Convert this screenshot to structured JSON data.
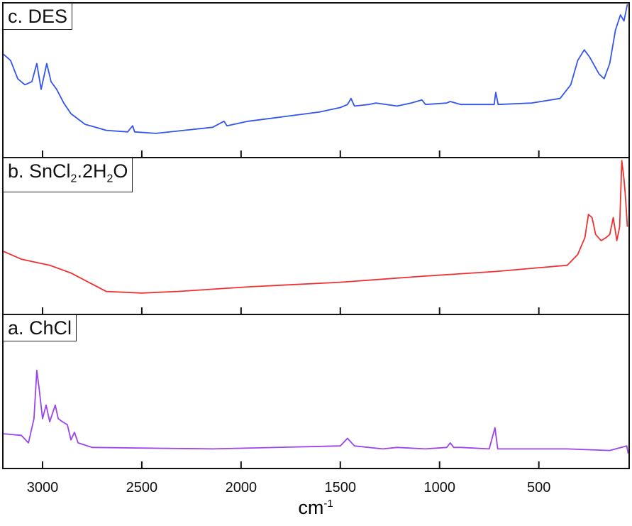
{
  "chart_data": {
    "type": "line",
    "xlabel": "cm",
    "xlabel_superscript": "-1",
    "xlim": [
      3200,
      45
    ],
    "x_ticks": [
      3000,
      2500,
      2000,
      1500,
      1000,
      500
    ],
    "ylim": [
      0,
      100
    ],
    "y_units": "relative intensity (stacked panels, no y axis shown)",
    "panels": [
      {
        "label_prefix": "c. ",
        "label": "DES",
        "color": "#3355ee",
        "x": [
          3196,
          3161,
          3125,
          3089,
          3054,
          3029,
          3007,
          2979,
          2957,
          2929,
          2893,
          2857,
          2786,
          2679,
          2571,
          2546,
          2536,
          2429,
          2286,
          2143,
          2086,
          2071,
          1964,
          1786,
          1607,
          1500,
          1464,
          1446,
          1429,
          1357,
          1321,
          1214,
          1143,
          1089,
          1071,
          964,
          946,
          893,
          725,
          717,
          705,
          536,
          393,
          339,
          304,
          271,
          243,
          196,
          171,
          143,
          114,
          89,
          71,
          54
        ],
        "y": [
          67,
          63,
          51,
          47,
          49,
          61,
          44,
          61,
          49,
          44,
          35,
          28,
          21,
          17,
          16,
          20,
          16,
          15,
          17,
          19,
          23,
          20,
          23,
          26,
          29,
          32,
          34,
          38,
          33,
          34,
          35,
          33,
          35,
          37,
          34,
          35,
          36,
          34,
          34,
          42,
          34,
          35,
          38,
          47,
          63,
          70,
          65,
          54,
          51,
          61,
          83,
          93,
          89,
          100
        ]
      },
      {
        "label_prefix": "b. ",
        "label": "SnCl2.2H2O",
        "color": "#f03030",
        "x": [
          3196,
          3107,
          2964,
          2857,
          2679,
          2500,
          2321,
          1964,
          1500,
          1071,
          714,
          357,
          304,
          268,
          250,
          232,
          214,
          186,
          161,
          143,
          125,
          107,
          93,
          82,
          71,
          64,
          54
        ],
        "y": [
          40,
          35,
          31,
          26,
          14,
          13,
          14,
          17,
          20,
          24,
          27,
          31,
          38,
          49,
          64,
          62,
          51,
          47,
          49,
          51,
          62,
          47,
          56,
          99,
          87,
          76,
          56
        ]
      },
      {
        "label_prefix": "a. ",
        "label": "ChCl",
        "color": "#9944ee",
        "x": [
          3196,
          3107,
          3071,
          3043,
          3029,
          3018,
          3000,
          2982,
          2964,
          2936,
          2921,
          2900,
          2875,
          2857,
          2839,
          2821,
          2750,
          2143,
          1500,
          1464,
          1429,
          1286,
          1214,
          1071,
          964,
          946,
          929,
          893,
          750,
          721,
          707,
          536,
          357,
          143,
          57,
          50
        ],
        "y": [
          22,
          21,
          16,
          32,
          64,
          53,
          32,
          41,
          30,
          41,
          32,
          30,
          28,
          18,
          23,
          16,
          13,
          12,
          14,
          19,
          14,
          12,
          13,
          12,
          13,
          16,
          13,
          13,
          12,
          26,
          12,
          12,
          12,
          11,
          14,
          9
        ]
      }
    ]
  }
}
